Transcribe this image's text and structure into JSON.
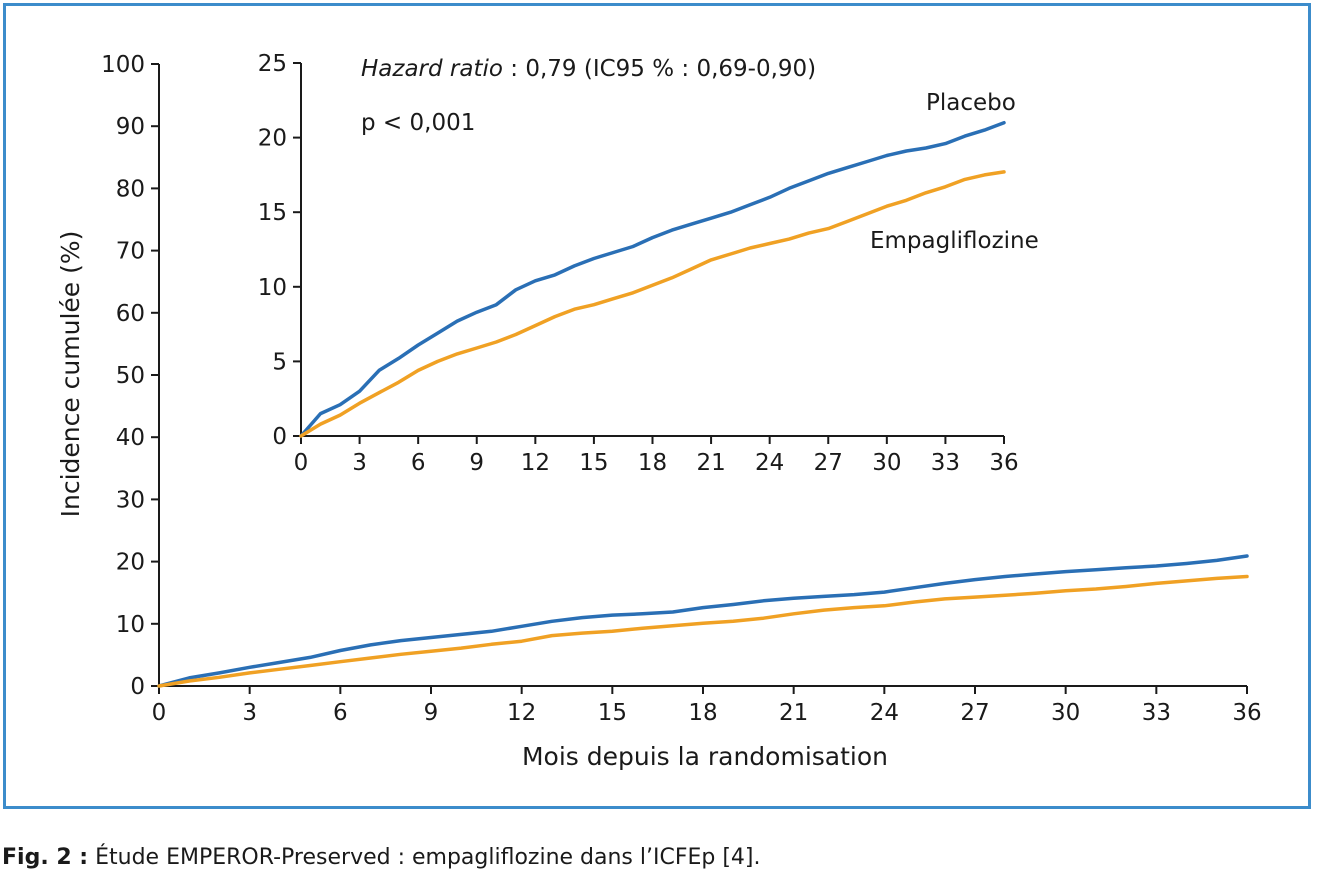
{
  "caption": {
    "prefix": "Fig. 2 :",
    "text": " Étude EMPEROR-Preserved : empagliflozine dans l’ICFEp [4]."
  },
  "colors": {
    "frame": "#3c8ccb",
    "placebo": "#2a6fb5",
    "empagliflozine": "#f0a124",
    "axis": "#1a1a1a"
  },
  "chart_data": [
    {
      "id": "main",
      "type": "line",
      "xlabel": "Mois depuis la randomisation",
      "ylabel": "Incidence cumulée (%)",
      "xlim": [
        0,
        36
      ],
      "ylim": [
        0,
        100
      ],
      "xticks": [
        0,
        3,
        6,
        9,
        12,
        15,
        18,
        21,
        24,
        27,
        30,
        33,
        36
      ],
      "yticks": [
        0,
        10,
        20,
        30,
        40,
        50,
        60,
        70,
        80,
        90,
        100
      ],
      "grid": false,
      "series": [
        {
          "key": "placebo",
          "x": [
            0,
            1,
            2,
            3,
            4,
            5,
            6,
            7,
            8,
            9,
            10,
            11,
            12,
            13,
            14,
            15,
            16,
            17,
            18,
            19,
            20,
            21,
            22,
            23,
            24,
            25,
            26,
            27,
            28,
            29,
            30,
            31,
            32,
            33,
            34,
            35,
            36
          ],
          "y": [
            0,
            1.3,
            2.1,
            3.0,
            3.8,
            4.6,
            5.7,
            6.6,
            7.3,
            7.8,
            8.3,
            8.8,
            9.6,
            10.4,
            11.0,
            11.4,
            11.6,
            11.9,
            12.6,
            13.1,
            13.7,
            14.1,
            14.4,
            14.7,
            15.1,
            15.8,
            16.5,
            17.1,
            17.6,
            18.0,
            18.4,
            18.7,
            19.0,
            19.3,
            19.7,
            20.2,
            20.9
          ]
        },
        {
          "key": "empagliflozine",
          "x": [
            0,
            1,
            2,
            3,
            4,
            5,
            6,
            7,
            8,
            9,
            10,
            11,
            12,
            13,
            14,
            15,
            16,
            17,
            18,
            19,
            20,
            21,
            22,
            23,
            24,
            25,
            26,
            27,
            28,
            29,
            30,
            31,
            32,
            33,
            34,
            35,
            36
          ],
          "y": [
            0,
            0.8,
            1.4,
            2.1,
            2.7,
            3.3,
            3.9,
            4.5,
            5.1,
            5.6,
            6.1,
            6.7,
            7.2,
            8.1,
            8.5,
            8.8,
            9.3,
            9.7,
            10.1,
            10.4,
            10.9,
            11.6,
            12.2,
            12.6,
            12.9,
            13.5,
            14.0,
            14.3,
            14.6,
            14.9,
            15.3,
            15.6,
            16.0,
            16.5,
            16.9,
            17.3,
            17.6
          ]
        }
      ]
    },
    {
      "id": "inset",
      "type": "line",
      "xlim": [
        0,
        36
      ],
      "ylim": [
        0,
        25
      ],
      "xticks": [
        0,
        3,
        6,
        9,
        12,
        15,
        18,
        21,
        24,
        27,
        30,
        33,
        36
      ],
      "yticks": [
        0,
        5,
        10,
        15,
        20,
        25
      ],
      "grid": false,
      "annotations": [
        {
          "text_italic": "Hazard ratio",
          "text": " : 0,79 (IC95 % : 0,69-0,90)"
        },
        {
          "text": "p < 0,001"
        }
      ],
      "series": [
        {
          "key": "placebo",
          "name": "Placebo",
          "x": [
            0,
            1,
            2,
            3,
            4,
            5,
            6,
            7,
            8,
            9,
            10,
            11,
            12,
            13,
            14,
            15,
            16,
            17,
            18,
            19,
            20,
            21,
            22,
            23,
            24,
            25,
            26,
            27,
            28,
            29,
            30,
            31,
            32,
            33,
            34,
            35,
            36
          ],
          "y": [
            0,
            1.5,
            2.1,
            3.0,
            4.4,
            5.2,
            6.1,
            6.9,
            7.7,
            8.3,
            8.8,
            9.8,
            10.4,
            10.8,
            11.4,
            11.9,
            12.3,
            12.7,
            13.3,
            13.8,
            14.2,
            14.6,
            15.0,
            15.5,
            16.0,
            16.6,
            17.1,
            17.6,
            18.0,
            18.4,
            18.8,
            19.1,
            19.3,
            19.6,
            20.1,
            20.5,
            21.0
          ]
        },
        {
          "key": "empagliflozine",
          "name": "Empagliflozine",
          "x": [
            0,
            1,
            2,
            3,
            4,
            5,
            6,
            7,
            8,
            9,
            10,
            11,
            12,
            13,
            14,
            15,
            16,
            17,
            18,
            19,
            20,
            21,
            22,
            23,
            24,
            25,
            26,
            27,
            28,
            29,
            30,
            31,
            32,
            33,
            34,
            35,
            36
          ],
          "y": [
            0,
            0.8,
            1.4,
            2.2,
            2.9,
            3.6,
            4.4,
            5.0,
            5.5,
            5.9,
            6.3,
            6.8,
            7.4,
            8.0,
            8.5,
            8.8,
            9.2,
            9.6,
            10.1,
            10.6,
            11.2,
            11.8,
            12.2,
            12.6,
            12.9,
            13.2,
            13.6,
            13.9,
            14.4,
            14.9,
            15.4,
            15.8,
            16.3,
            16.7,
            17.2,
            17.5,
            17.7
          ]
        }
      ]
    }
  ]
}
